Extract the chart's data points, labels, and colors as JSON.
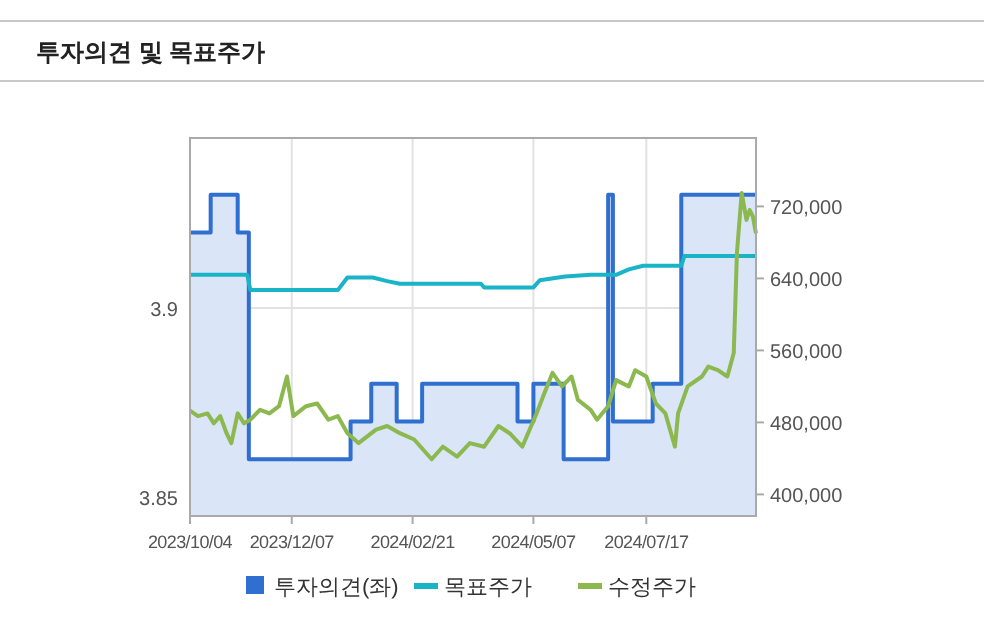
{
  "chart_data": {
    "type": "line",
    "title": "투자의견 및 목표주가",
    "legend": "bottom",
    "grid": true,
    "xlim": [
      "2023-10-04",
      "2024-09-24"
    ],
    "xticks": [
      {
        "value": "2023-10-04",
        "label": "2023/10/04"
      },
      {
        "value": "2023-12-07",
        "label": "2023/12/07"
      },
      {
        "value": "2024-02-21",
        "label": "2024/02/21"
      },
      {
        "value": "2024-05-07",
        "label": "2024/05/07"
      },
      {
        "value": "2024-07-17",
        "label": "2024/07/17"
      }
    ],
    "ylim": [
      3.845,
      3.945
    ],
    "yticks": [
      3.85,
      3.9
    ],
    "y2lim": [
      376000,
      796000
    ],
    "y2ticks": [
      {
        "value": 400000,
        "label": "400,000"
      },
      {
        "value": 480000,
        "label": "480,000"
      },
      {
        "value": 560000,
        "label": "560,000"
      },
      {
        "value": 640000,
        "label": "640,000"
      },
      {
        "value": 720000,
        "label": "720,000"
      }
    ],
    "series": [
      {
        "name": "투자의견(좌)",
        "type": "area",
        "color": "#2f6fd0",
        "x": [
          "2023-10-04",
          "2023-10-17",
          "2023-10-17",
          "2023-11-03",
          "2023-11-03",
          "2023-11-10",
          "2023-11-10",
          "2024-01-13",
          "2024-01-13",
          "2024-01-26",
          "2024-01-26",
          "2024-02-11",
          "2024-02-11",
          "2024-02-27",
          "2024-02-27",
          "2024-04-27",
          "2024-04-27",
          "2024-05-07",
          "2024-05-07",
          "2024-05-26",
          "2024-05-26",
          "2024-06-23",
          "2024-06-23",
          "2024-06-26",
          "2024-06-26",
          "2024-07-21",
          "2024-07-21",
          "2024-08-08",
          "2024-08-08",
          "2024-09-24"
        ],
        "values": [
          3.92,
          3.92,
          3.93,
          3.93,
          3.92,
          3.92,
          3.86,
          3.86,
          3.87,
          3.87,
          3.88,
          3.88,
          3.87,
          3.87,
          3.88,
          3.88,
          3.87,
          3.87,
          3.88,
          3.88,
          3.86,
          3.86,
          3.93,
          3.93,
          3.87,
          3.87,
          3.88,
          3.88,
          3.93,
          3.93
        ]
      },
      {
        "name": "목표주가",
        "axis": "y2",
        "color": "#1ab4c8",
        "x": [
          "2023-10-04",
          "2023-11-09",
          "2023-11-11",
          "2024-01-05",
          "2024-01-11",
          "2024-01-27",
          "2024-02-05",
          "2024-02-13",
          "2024-04-04",
          "2024-04-06",
          "2024-05-07",
          "2024-05-11",
          "2024-05-27",
          "2024-06-12",
          "2024-06-28",
          "2024-07-06",
          "2024-07-15",
          "2024-08-08",
          "2024-08-10",
          "2024-09-24"
        ],
        "values": [
          644000,
          644000,
          627000,
          627000,
          641000,
          641000,
          637000,
          634000,
          634000,
          630000,
          630000,
          638000,
          642000,
          644000,
          644000,
          650000,
          654000,
          654000,
          665000,
          665000
        ]
      },
      {
        "name": "수정주가",
        "axis": "y2",
        "color": "#8cb850",
        "x": [
          "2023-10-04",
          "2023-10-09",
          "2023-10-15",
          "2023-10-19",
          "2023-10-23",
          "2023-10-27",
          "2023-10-30",
          "2023-11-03",
          "2023-11-07",
          "2023-11-11",
          "2023-11-17",
          "2023-11-23",
          "2023-11-29",
          "2023-12-04",
          "2023-12-08",
          "2023-12-16",
          "2023-12-23",
          "2023-12-30",
          "2024-01-05",
          "2024-01-11",
          "2024-01-18",
          "2024-01-29",
          "2024-02-05",
          "2024-02-13",
          "2024-02-22",
          "2024-03-04",
          "2024-03-11",
          "2024-03-20",
          "2024-03-28",
          "2024-04-06",
          "2024-04-15",
          "2024-04-22",
          "2024-04-30",
          "2024-05-09",
          "2024-05-14",
          "2024-05-19",
          "2024-05-25",
          "2024-05-31",
          "2024-06-04",
          "2024-06-12",
          "2024-06-16",
          "2024-06-23",
          "2024-06-28",
          "2024-07-06",
          "2024-07-10",
          "2024-07-17",
          "2024-07-23",
          "2024-07-29",
          "2024-08-04",
          "2024-08-06",
          "2024-08-12",
          "2024-08-21",
          "2024-08-25",
          "2024-08-31",
          "2024-09-06",
          "2024-09-10",
          "2024-09-12",
          "2024-09-15",
          "2024-09-18",
          "2024-09-20",
          "2024-09-22",
          "2024-09-24"
        ],
        "values": [
          493000,
          487000,
          490000,
          479000,
          487000,
          468000,
          457000,
          490000,
          479000,
          483000,
          494000,
          490000,
          498000,
          531000,
          487000,
          498000,
          501000,
          483000,
          487000,
          468000,
          457000,
          472000,
          476000,
          468000,
          461000,
          439000,
          453000,
          442000,
          457000,
          453000,
          476000,
          468000,
          453000,
          490000,
          513000,
          535000,
          520000,
          531000,
          505000,
          494000,
          483000,
          498000,
          527000,
          520000,
          538000,
          531000,
          501000,
          490000,
          453000,
          490000,
          520000,
          531000,
          542000,
          538000,
          531000,
          557000,
          668000,
          735000,
          705000,
          716000,
          709000,
          690000
        ]
      }
    ]
  }
}
